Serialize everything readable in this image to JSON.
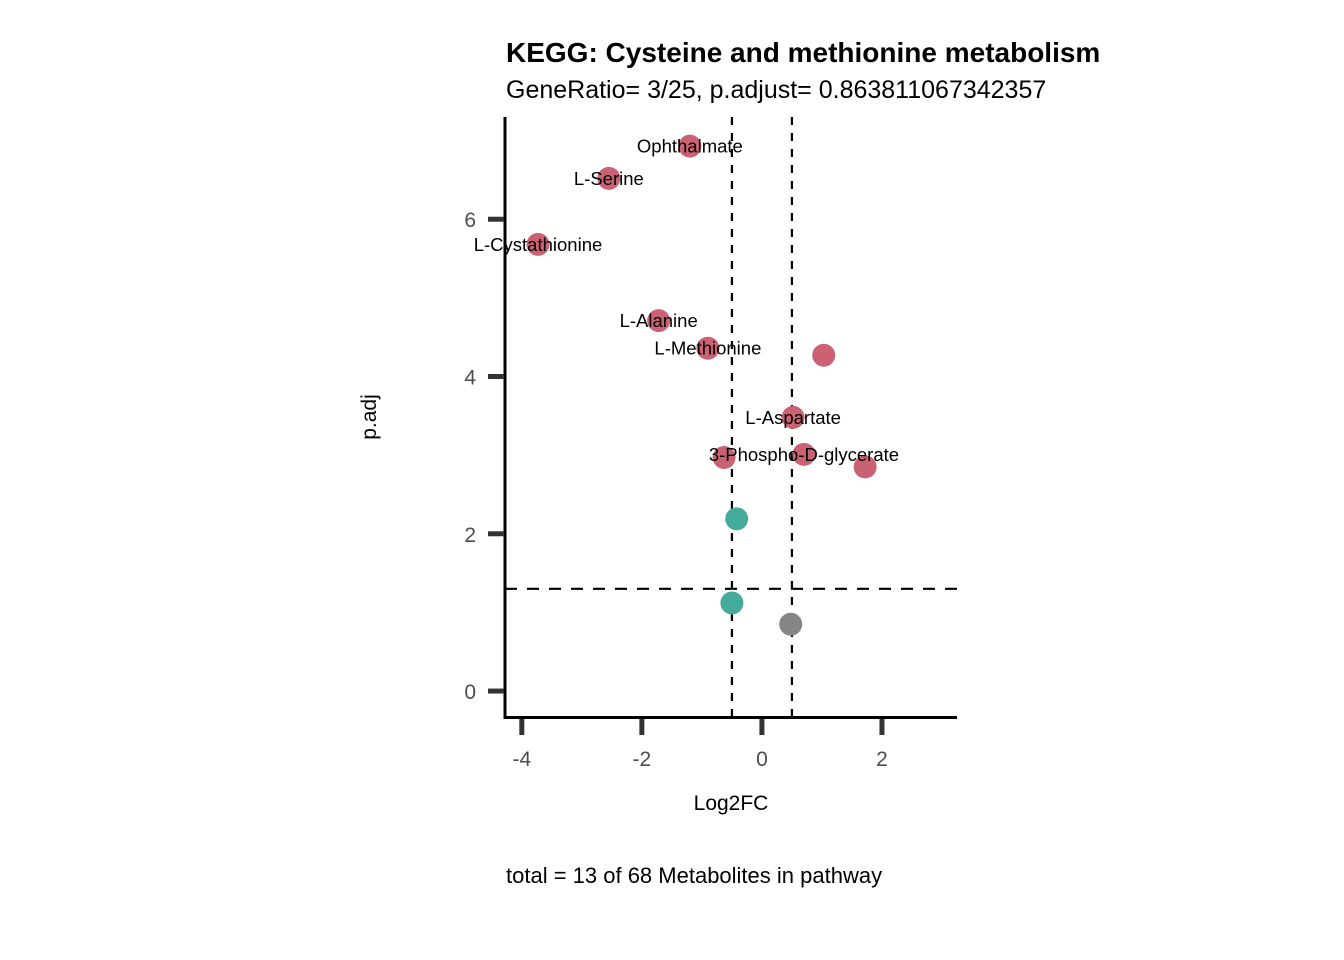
{
  "chart_data": {
    "type": "scatter",
    "title": "KEGG: Cysteine and methionine metabolism",
    "subtitle": "GeneRatio= 3/25, p.adjust= 0.863811067342357",
    "xlabel": "Log2FC",
    "ylabel": "p.adj",
    "caption": "total = 13 of 68 Metabolites in pathway",
    "xlim": [
      -4.28,
      3.25
    ],
    "ylim": [
      -0.33,
      7.3
    ],
    "xticks": [
      -4,
      -2,
      0,
      2
    ],
    "xtick_labels": [
      "-4",
      "-2",
      "0",
      "2"
    ],
    "yticks": [
      0,
      2,
      4,
      6
    ],
    "ytick_labels": [
      "0",
      "2",
      "4",
      "6"
    ],
    "grid": false,
    "legend": "none",
    "thresholds": {
      "vlines": [
        -0.5,
        0.5
      ],
      "hlines": [
        1.3
      ]
    },
    "colors": {
      "up": "#CB6274",
      "down": "#45AB9A",
      "ns": "#858585"
    },
    "points": [
      {
        "label": "Ophthalmate",
        "x": -1.2,
        "y": 6.93,
        "group": "up"
      },
      {
        "label": "L-Serine",
        "x": -2.55,
        "y": 6.52,
        "group": "up"
      },
      {
        "label": "L-Cystathionine",
        "x": -3.73,
        "y": 5.68,
        "group": "up"
      },
      {
        "label": "L-Alanine",
        "x": -1.72,
        "y": 4.71,
        "group": "up"
      },
      {
        "label": "L-Methionine",
        "x": -0.9,
        "y": 4.36,
        "group": "up"
      },
      {
        "label": "",
        "x": 1.03,
        "y": 4.27,
        "group": "up"
      },
      {
        "label": "L-Aspartate",
        "x": 0.52,
        "y": 3.48,
        "group": "up"
      },
      {
        "label": "3-Phospho-D-glycerate",
        "x": 0.7,
        "y": 3.01,
        "group": "up"
      },
      {
        "label": "",
        "x": -0.63,
        "y": 2.97,
        "group": "up"
      },
      {
        "label": "",
        "x": 1.72,
        "y": 2.85,
        "group": "up"
      },
      {
        "label": "",
        "x": -0.42,
        "y": 2.19,
        "group": "down"
      },
      {
        "label": "",
        "x": -0.5,
        "y": 1.12,
        "group": "down"
      },
      {
        "label": "",
        "x": 0.48,
        "y": 0.85,
        "group": "ns"
      }
    ]
  }
}
